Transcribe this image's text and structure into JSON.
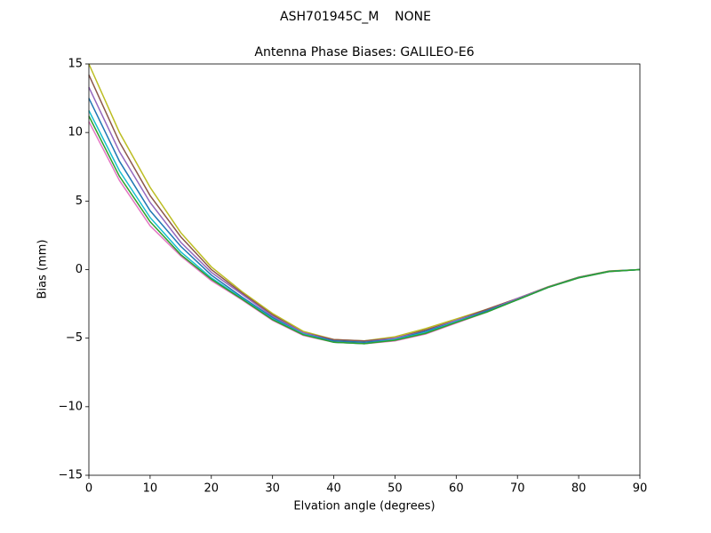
{
  "chart_data": {
    "type": "line",
    "suptitle": "ASH701945C_M    NONE",
    "title": "Antenna Phase Biases: GALILEO-E6",
    "xlabel": "Elvation angle (degrees)",
    "ylabel": "Bias (mm)",
    "x": [
      0,
      5,
      10,
      15,
      20,
      25,
      30,
      35,
      40,
      45,
      50,
      55,
      60,
      65,
      70,
      75,
      80,
      85,
      90
    ],
    "series": [
      {
        "color": "#e377c2",
        "values": [
          10.8,
          6.5,
          3.2,
          1.0,
          -0.8,
          -2.2,
          -3.7,
          -4.8,
          -5.3,
          -5.4,
          -5.2,
          -4.7,
          -3.9,
          -3.1,
          -2.2,
          -1.3,
          -0.6,
          -0.15,
          0
        ]
      },
      {
        "color": "#bcbd22",
        "values": [
          15.0,
          10.0,
          6.0,
          2.7,
          0.2,
          -1.6,
          -3.2,
          -4.5,
          -5.1,
          -5.2,
          -4.9,
          -4.3,
          -3.6,
          -2.9,
          -2.1,
          -1.25,
          -0.55,
          -0.1,
          0
        ]
      },
      {
        "color": "#8c564b",
        "values": [
          14.2,
          9.3,
          5.4,
          2.4,
          0.0,
          -1.7,
          -3.3,
          -4.6,
          -5.1,
          -5.2,
          -5.0,
          -4.4,
          -3.7,
          -2.9,
          -2.1,
          -1.26,
          -0.56,
          -0.11,
          0
        ]
      },
      {
        "color": "#9467bd",
        "values": [
          13.3,
          8.6,
          4.9,
          2.0,
          -0.2,
          -1.8,
          -3.4,
          -4.6,
          -5.2,
          -5.3,
          -5.0,
          -4.5,
          -3.7,
          -3.0,
          -2.1,
          -1.28,
          -0.57,
          -0.12,
          0
        ]
      },
      {
        "color": "#1f77b4",
        "values": [
          12.5,
          7.9,
          4.3,
          1.7,
          -0.4,
          -2.0,
          -3.5,
          -4.7,
          -5.2,
          -5.3,
          -5.1,
          -4.5,
          -3.8,
          -3.0,
          -2.2,
          -1.3,
          -0.58,
          -0.13,
          0
        ]
      },
      {
        "color": "#17becf",
        "values": [
          11.6,
          7.2,
          3.8,
          1.3,
          -0.6,
          -2.1,
          -3.6,
          -4.7,
          -5.3,
          -5.4,
          -5.1,
          -4.6,
          -3.8,
          -3.1,
          -2.2,
          -1.3,
          -0.6,
          -0.14,
          0
        ]
      },
      {
        "color": "#2ca02c",
        "values": [
          11.2,
          6.8,
          3.5,
          1.1,
          -0.7,
          -2.15,
          -3.65,
          -4.75,
          -5.3,
          -5.4,
          -5.15,
          -4.65,
          -3.85,
          -3.1,
          -2.2,
          -1.3,
          -0.6,
          -0.14,
          0
        ]
      }
    ],
    "xlim": [
      0,
      90
    ],
    "xticks": [
      0,
      10,
      20,
      30,
      40,
      50,
      60,
      70,
      80,
      90
    ],
    "ylim": [
      -15,
      15
    ],
    "yticks": [
      {
        "value": -15,
        "label": "−15"
      },
      {
        "value": -10,
        "label": "−10"
      },
      {
        "value": -5,
        "label": "−5"
      },
      0,
      5,
      10,
      15
    ],
    "grid": false
  }
}
